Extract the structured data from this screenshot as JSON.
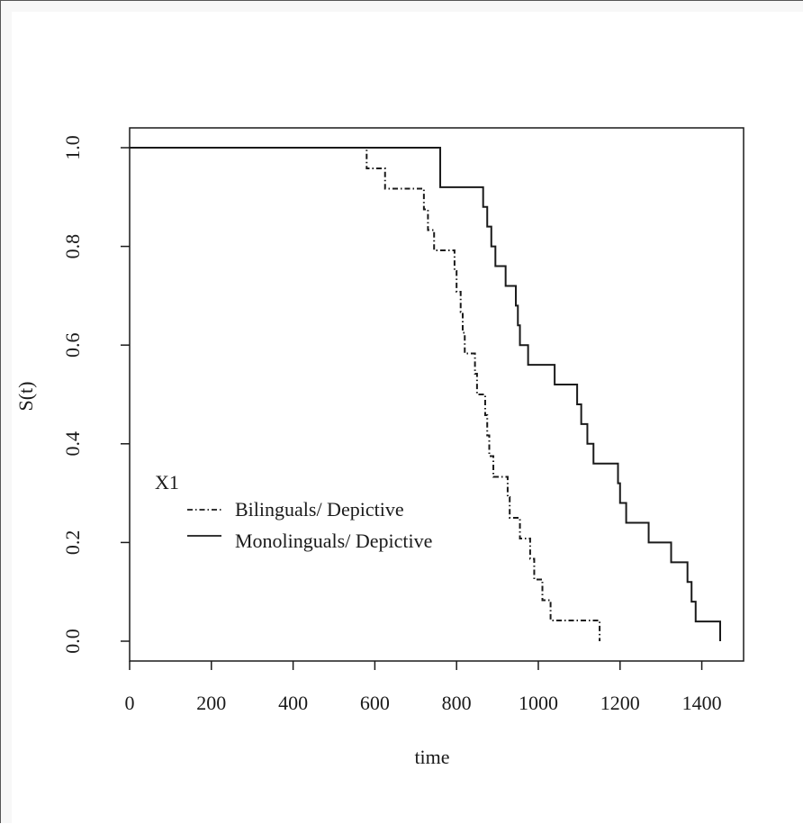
{
  "chart_data": {
    "type": "line",
    "step": true,
    "xlabel": "time",
    "ylabel": "S(t)",
    "xlim": [
      0,
      1500
    ],
    "ylim": [
      0,
      1.0
    ],
    "x_ticks": [
      0,
      200,
      400,
      600,
      800,
      1000,
      1200,
      1400
    ],
    "y_ticks": [
      0.0,
      0.2,
      0.4,
      0.6,
      0.8,
      1.0
    ],
    "y_tick_labels": [
      "0.0",
      "0.2",
      "0.4",
      "0.6",
      "0.8",
      "1.0"
    ],
    "x_tick_labels": [
      "0",
      "200",
      "400",
      "600",
      "800",
      "1000",
      "1200",
      "1400"
    ],
    "grid": false,
    "legend": {
      "title": "X1",
      "position": "lower-left",
      "entries": [
        "Bilinguals/ Depictive",
        "Monolinguals/ Depictive"
      ]
    },
    "series": [
      {
        "name": "Bilinguals/ Depictive",
        "line_style": "dashdot",
        "color": "#1a1a1a",
        "steps": [
          [
            0,
            1.0
          ],
          [
            580,
            0.958
          ],
          [
            625,
            0.917
          ],
          [
            720,
            0.875
          ],
          [
            730,
            0.833
          ],
          [
            745,
            0.792
          ],
          [
            795,
            0.75
          ],
          [
            800,
            0.708
          ],
          [
            810,
            0.667
          ],
          [
            815,
            0.625
          ],
          [
            820,
            0.583
          ],
          [
            845,
            0.542
          ],
          [
            850,
            0.5
          ],
          [
            870,
            0.458
          ],
          [
            875,
            0.417
          ],
          [
            880,
            0.375
          ],
          [
            890,
            0.333
          ],
          [
            925,
            0.292
          ],
          [
            930,
            0.25
          ],
          [
            955,
            0.208
          ],
          [
            980,
            0.167
          ],
          [
            990,
            0.125
          ],
          [
            1010,
            0.083
          ],
          [
            1030,
            0.042
          ],
          [
            1150,
            0.0
          ]
        ]
      },
      {
        "name": "Monolinguals/ Depictive",
        "line_style": "solid",
        "color": "#1a1a1a",
        "steps": [
          [
            0,
            1.0
          ],
          [
            760,
            0.92
          ],
          [
            865,
            0.88
          ],
          [
            875,
            0.84
          ],
          [
            885,
            0.8
          ],
          [
            895,
            0.76
          ],
          [
            920,
            0.72
          ],
          [
            945,
            0.68
          ],
          [
            950,
            0.64
          ],
          [
            955,
            0.6
          ],
          [
            975,
            0.56
          ],
          [
            1040,
            0.52
          ],
          [
            1095,
            0.48
          ],
          [
            1105,
            0.44
          ],
          [
            1120,
            0.4
          ],
          [
            1135,
            0.36
          ],
          [
            1195,
            0.32
          ],
          [
            1200,
            0.28
          ],
          [
            1215,
            0.24
          ],
          [
            1270,
            0.2
          ],
          [
            1325,
            0.16
          ],
          [
            1365,
            0.12
          ],
          [
            1375,
            0.08
          ],
          [
            1385,
            0.04
          ],
          [
            1445,
            0.0
          ]
        ]
      }
    ]
  }
}
